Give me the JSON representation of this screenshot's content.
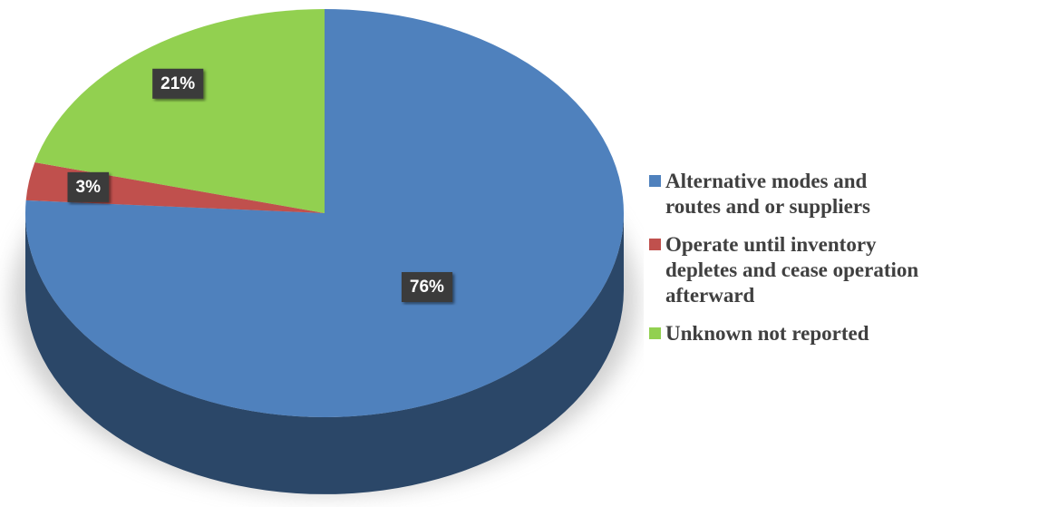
{
  "chart_data": {
    "type": "pie",
    "categories": [
      "Alternative modes and routes and or suppliers",
      "Operate until inventory depletes and cease operation afterward",
      "Unknown not reported"
    ],
    "values": [
      76,
      3,
      21
    ],
    "value_labels": [
      "76%",
      "3%",
      "21%"
    ],
    "colors": [
      "#4f81bd",
      "#c0504d",
      "#92d050"
    ],
    "legend": "right"
  }
}
